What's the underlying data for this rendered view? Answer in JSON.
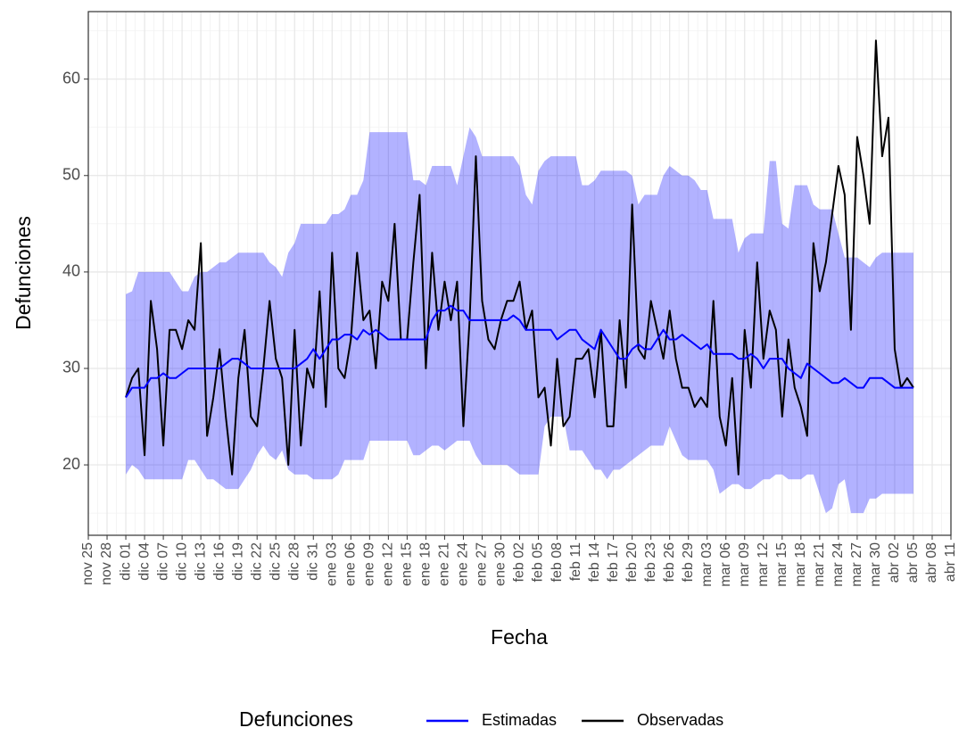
{
  "chart_data": {
    "type": "line",
    "x_label": "Fecha",
    "y_label": "Defunciones",
    "legend_title": "Defunciones",
    "legend": "bottom",
    "grid": true,
    "x": [
      "dic 01",
      "dic 02",
      "dic 03",
      "dic 04",
      "dic 05",
      "dic 06",
      "dic 07",
      "dic 08",
      "dic 09",
      "dic 10",
      "dic 11",
      "dic 12",
      "dic 13",
      "dic 14",
      "dic 15",
      "dic 16",
      "dic 17",
      "dic 18",
      "dic 19",
      "dic 20",
      "dic 21",
      "dic 22",
      "dic 23",
      "dic 24",
      "dic 25",
      "dic 26",
      "dic 27",
      "dic 28",
      "dic 29",
      "dic 30",
      "dic 31",
      "ene 01",
      "ene 02",
      "ene 03",
      "ene 04",
      "ene 05",
      "ene 06",
      "ene 07",
      "ene 08",
      "ene 09",
      "ene 10",
      "ene 11",
      "ene 12",
      "ene 13",
      "ene 14",
      "ene 15",
      "ene 16",
      "ene 17",
      "ene 18",
      "ene 19",
      "ene 20",
      "ene 21",
      "ene 22",
      "ene 23",
      "ene 24",
      "ene 25",
      "ene 26",
      "ene 27",
      "ene 28",
      "ene 29",
      "ene 30",
      "ene 31",
      "feb 01",
      "feb 02",
      "feb 03",
      "feb 04",
      "feb 05",
      "feb 06",
      "feb 07",
      "feb 08",
      "feb 09",
      "feb 10",
      "feb 11",
      "feb 12",
      "feb 13",
      "feb 14",
      "feb 15",
      "feb 16",
      "feb 17",
      "feb 18",
      "feb 19",
      "feb 20",
      "feb 21",
      "feb 22",
      "feb 23",
      "feb 24",
      "feb 25",
      "feb 26",
      "feb 27",
      "feb 28",
      "feb 29",
      "mar 01",
      "mar 02",
      "mar 03",
      "mar 04",
      "mar 05",
      "mar 06",
      "mar 07",
      "mar 08",
      "mar 09",
      "mar 10",
      "mar 11",
      "mar 12",
      "mar 13",
      "mar 14",
      "mar 15",
      "mar 16",
      "mar 17",
      "mar 18",
      "mar 19",
      "mar 20",
      "mar 21",
      "mar 22",
      "mar 23",
      "mar 24",
      "mar 25",
      "mar 26",
      "mar 27",
      "mar 28",
      "mar 29",
      "mar 30",
      "mar 31",
      "abr 01",
      "abr 02",
      "abr 03",
      "abr 04",
      "abr 05"
    ],
    "xlim": [
      "nov 25",
      "abr 11"
    ],
    "xticks": [
      "nov 25",
      "nov 28",
      "dic 01",
      "dic 04",
      "dic 07",
      "dic 10",
      "dic 13",
      "dic 16",
      "dic 19",
      "dic 22",
      "dic 25",
      "dic 28",
      "dic 31",
      "ene 03",
      "ene 06",
      "ene 09",
      "ene 12",
      "ene 15",
      "ene 18",
      "ene 21",
      "ene 24",
      "ene 27",
      "ene 30",
      "feb 02",
      "feb 05",
      "feb 08",
      "feb 11",
      "feb 14",
      "feb 17",
      "feb 20",
      "feb 23",
      "feb 26",
      "feb 29",
      "mar 03",
      "mar 06",
      "mar 09",
      "mar 12",
      "mar 15",
      "mar 18",
      "mar 21",
      "mar 24",
      "mar 27",
      "mar 30",
      "abr 02",
      "abr 05",
      "abr 08",
      "abr 11"
    ],
    "ylim": [
      12.7,
      67
    ],
    "yticks": [
      20,
      30,
      40,
      50,
      60
    ],
    "band": {
      "color": "#0000ff",
      "upper": [
        37.7,
        38,
        40,
        40,
        40,
        40,
        40,
        40,
        39,
        38,
        38,
        39.5,
        40,
        40,
        40.5,
        41,
        41,
        41.5,
        42,
        42,
        42,
        42,
        42,
        41,
        40.5,
        39.5,
        42,
        43,
        45,
        45,
        45,
        45,
        45,
        46,
        46,
        46.5,
        48,
        48,
        49.5,
        54.5,
        54.5,
        54.5,
        54.5,
        54.5,
        54.5,
        54.5,
        49.5,
        49.5,
        49,
        51,
        51,
        51,
        51,
        49,
        52,
        55,
        54,
        52,
        52,
        52,
        52,
        52,
        52,
        51,
        48,
        47,
        50.5,
        51.5,
        52,
        52,
        52,
        52,
        52,
        49,
        49,
        49.5,
        50.5,
        50.5,
        50.5,
        50.5,
        50.5,
        50,
        47,
        48,
        48,
        48,
        50,
        51,
        50.5,
        50,
        50,
        49.5,
        48.5,
        48.5,
        45.5,
        45.5,
        45.5,
        45.5,
        42,
        43.5,
        44,
        44,
        44,
        51.5,
        51.5,
        45,
        44.5,
        49,
        49,
        49,
        47,
        46.5,
        46.5,
        46.5,
        44,
        41.5,
        41.5,
        41.5,
        41,
        40.5,
        41.5,
        42,
        42,
        42,
        42,
        42,
        42
      ],
      "lower": [
        19,
        20,
        19.5,
        18.5,
        18.5,
        18.5,
        18.5,
        18.5,
        18.5,
        18.5,
        20.5,
        20.5,
        19.5,
        18.5,
        18.5,
        18,
        17.5,
        17.5,
        17.5,
        18.5,
        19.5,
        21,
        22,
        21,
        20.5,
        21.5,
        19.5,
        19,
        19,
        19,
        18.5,
        18.5,
        18.5,
        18.5,
        19,
        20.5,
        20.5,
        20.5,
        20.5,
        22.5,
        22.5,
        22.5,
        22.5,
        22.5,
        22.5,
        22.5,
        21,
        21,
        21.5,
        22,
        22,
        21.5,
        22,
        22.5,
        22.5,
        22.5,
        21,
        20,
        20,
        20,
        20,
        20,
        19.5,
        19,
        19,
        19,
        19,
        24,
        25,
        25,
        25,
        21.5,
        21.5,
        21.5,
        20.5,
        19.5,
        19.5,
        18.5,
        19.5,
        19.5,
        20,
        20.5,
        21,
        21.5,
        22,
        22,
        22,
        24,
        22.5,
        21,
        20.5,
        20.5,
        20.5,
        20.5,
        19.5,
        17,
        17.5,
        18,
        18,
        17.5,
        17.5,
        18,
        18.5,
        18.5,
        19,
        19,
        18.5,
        18.5,
        18.5,
        19,
        19,
        17,
        15,
        15.5,
        18,
        18.5,
        15,
        15,
        15,
        16.5,
        16.5,
        17,
        17,
        17,
        17,
        17,
        17
      ]
    },
    "series": [
      {
        "name": "Estimadas",
        "color": "#0000ff",
        "values": [
          27,
          28,
          28,
          28,
          29,
          29,
          29.5,
          29,
          29,
          29.5,
          30,
          30,
          30,
          30,
          30,
          30,
          30.5,
          31,
          31,
          30.5,
          30,
          30,
          30,
          30,
          30,
          30,
          30,
          30,
          30.5,
          31,
          32,
          31,
          32,
          33,
          33,
          33.5,
          33.5,
          33,
          34,
          33.5,
          34,
          33.5,
          33,
          33,
          33,
          33,
          33,
          33,
          33,
          35,
          36,
          36,
          36.5,
          36,
          36,
          35,
          35,
          35,
          35,
          35,
          35,
          35,
          35.5,
          35,
          34,
          34,
          34,
          34,
          34,
          33,
          33.5,
          34,
          34,
          33,
          32.5,
          32,
          34,
          33,
          32,
          31,
          31,
          32,
          32.5,
          32,
          32,
          33,
          34,
          33,
          33,
          33.5,
          33,
          32.5,
          32,
          32.5,
          31.5,
          31.5,
          31.5,
          31.5,
          31,
          31,
          31.5,
          31,
          30,
          31,
          31,
          31,
          30,
          29.5,
          29,
          30.5,
          30,
          29.5,
          29,
          28.5,
          28.5,
          29,
          28.5,
          28,
          28,
          29,
          29,
          29,
          28.5,
          28,
          28,
          28,
          28
        ]
      },
      {
        "name": "Observadas",
        "color": "#000000",
        "values": [
          27,
          29,
          30,
          21,
          37,
          32,
          22,
          34,
          34,
          32,
          35,
          34,
          43,
          23,
          27,
          32,
          25,
          19,
          29,
          34,
          25,
          24,
          30,
          37,
          31,
          29,
          20,
          34,
          22,
          30,
          28,
          38,
          26,
          42,
          30,
          29,
          33,
          42,
          35,
          36,
          30,
          39,
          37,
          45,
          33,
          33,
          41,
          48,
          30,
          42,
          34,
          39,
          35,
          39,
          24,
          35,
          52,
          37,
          33,
          32,
          35,
          37,
          37,
          39,
          34,
          36,
          27,
          28,
          22,
          31,
          24,
          25,
          31,
          31,
          32,
          27,
          34,
          24,
          24,
          35,
          28,
          47,
          32,
          31,
          37,
          34,
          31,
          36,
          31,
          28,
          28,
          26,
          27,
          26,
          37,
          25,
          22,
          29,
          19,
          34,
          28,
          41,
          31,
          36,
          34,
          25,
          33,
          28,
          26,
          23,
          43,
          38,
          41,
          46,
          51,
          48,
          34,
          54,
          50,
          45,
          64,
          52,
          56,
          32,
          28,
          29,
          28
        ]
      }
    ]
  }
}
